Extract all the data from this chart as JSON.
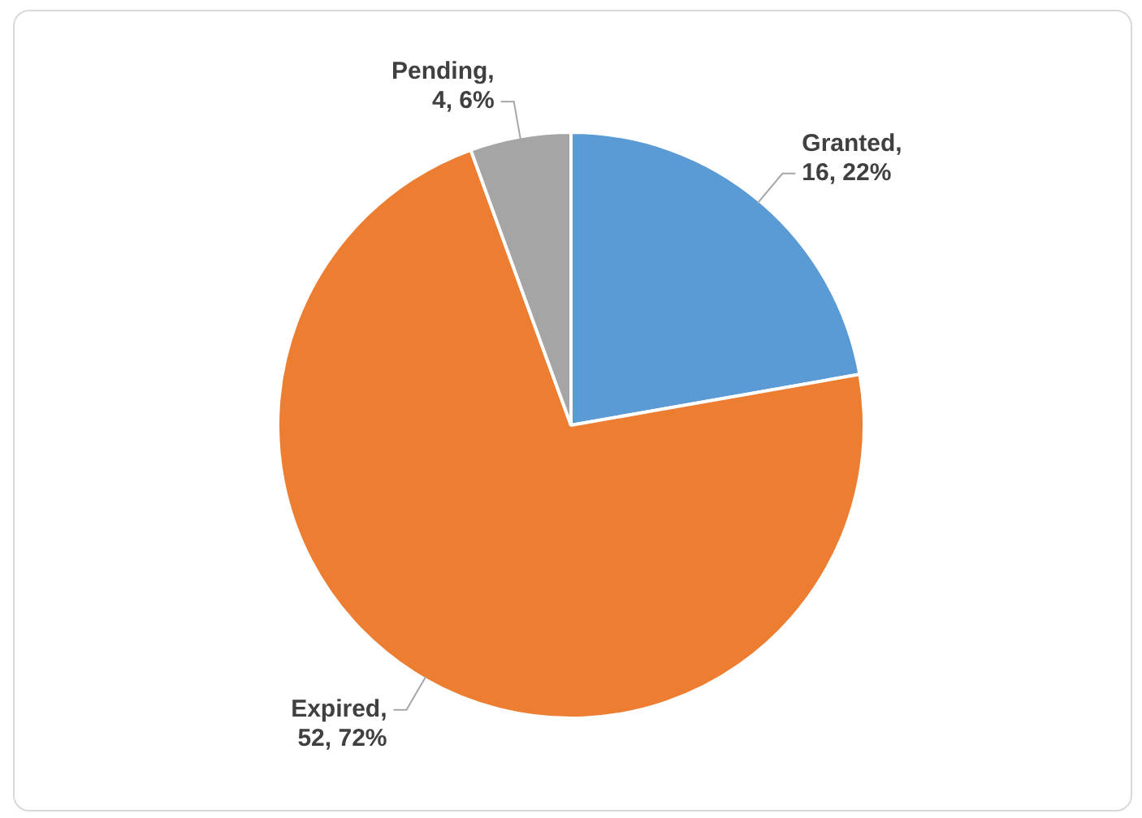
{
  "chart_data": {
    "type": "pie",
    "categories": [
      "Granted",
      "Expired",
      "Pending"
    ],
    "values": [
      16,
      52,
      4
    ],
    "colors": [
      "#5b9bd5",
      "#ed7d31",
      "#a5a5a5"
    ],
    "value_labels": [
      ", 16, 22%",
      ", 52, 72%",
      ", 4, 6%"
    ],
    "legend": false
  }
}
